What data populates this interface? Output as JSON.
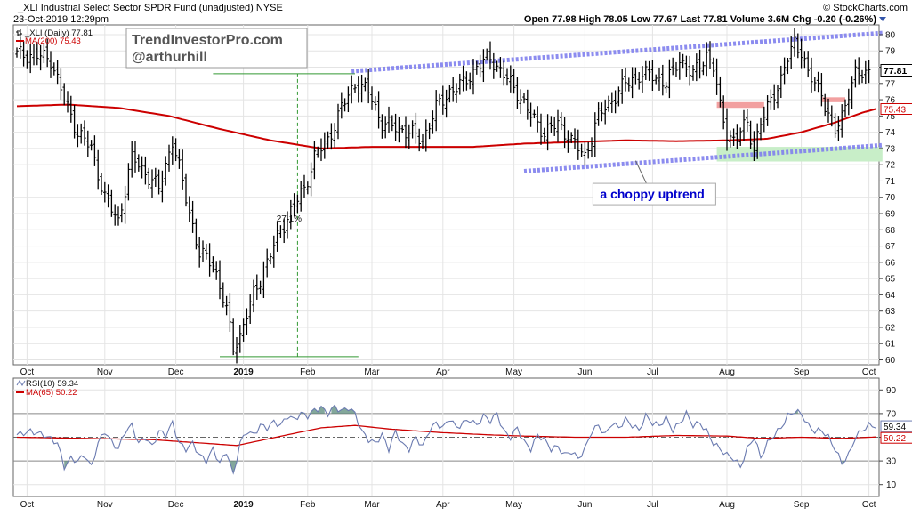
{
  "header": {
    "symbol": "_XLI",
    "name": "Industrial Select Sector SPDR Fund (unadjusted)",
    "exchange": "NYSE",
    "datetime": "23-Oct-2019 12:29pm",
    "watermark": "© StockCharts.com",
    "open_label": "Open",
    "open": "77.98",
    "high_label": "High",
    "high": "78.05",
    "low_label": "Low",
    "low": "77.67",
    "last_label": "Last",
    "last": "77.81",
    "volume_label": "Volume",
    "volume": "3.6M",
    "chg_label": "Chg",
    "chg": "-0.20 (-0.26%)"
  },
  "branding": {
    "line1": "TrendInvestorPro.com",
    "line2": "@arthurhill"
  },
  "colors": {
    "price": "#000000",
    "ma": "#cc0000",
    "channel": "#8080ee",
    "support": "#c8eec8",
    "resistance": "#f2a0a0",
    "rsi": "#6a7ab0",
    "rsi_fill": "#5a8a7a",
    "annotation_text": "#0000cc"
  },
  "chart_data": [
    {
      "type": "ohlc",
      "panel": "price",
      "legend": {
        "price_label": "_XLI (Daily) 77.81",
        "ma_label": "MA(200) 75.43"
      },
      "ylim": [
        59.7,
        80.6
      ],
      "y_ticks": [
        60,
        61,
        62,
        63,
        64,
        65,
        66,
        67,
        68,
        69,
        70,
        71,
        72,
        73,
        74,
        75,
        76,
        77,
        78,
        79,
        80
      ],
      "last_value_label": "77.81",
      "ma_value_label": "75.43",
      "x_months": [
        {
          "label": "Oct",
          "index": 3
        },
        {
          "label": "Nov",
          "index": 26
        },
        {
          "label": "Dec",
          "index": 47
        },
        {
          "label": "2019",
          "index": 67,
          "bold": true
        },
        {
          "label": "Feb",
          "index": 86
        },
        {
          "label": "Mar",
          "index": 105
        },
        {
          "label": "Apr",
          "index": 126
        },
        {
          "label": "May",
          "index": 147
        },
        {
          "label": "Jun",
          "index": 168
        },
        {
          "label": "Jul",
          "index": 188
        },
        {
          "label": "Aug",
          "index": 210
        },
        {
          "label": "Sep",
          "index": 232
        },
        {
          "label": "Oct",
          "index": 252
        }
      ],
      "series_anchors": [
        [
          0,
          78.8
        ],
        [
          6,
          78.7
        ],
        [
          10,
          78.5
        ],
        [
          14,
          76.0
        ],
        [
          18,
          74.0
        ],
        [
          22,
          73.0
        ],
        [
          26,
          70.0
        ],
        [
          30,
          68.5
        ],
        [
          34,
          72.5
        ],
        [
          38,
          71.5
        ],
        [
          42,
          70.5
        ],
        [
          46,
          73.5
        ],
        [
          50,
          70.0
        ],
        [
          54,
          66.5
        ],
        [
          58,
          66.0
        ],
        [
          62,
          63.0
        ],
        [
          64,
          60.8
        ],
        [
          66,
          61.5
        ],
        [
          70,
          64.0
        ],
        [
          74,
          66.0
        ],
        [
          78,
          68.0
        ],
        [
          82,
          69.5
        ],
        [
          85,
          70.5
        ],
        [
          88,
          72.5
        ],
        [
          92,
          73.5
        ],
        [
          96,
          75.5
        ],
        [
          100,
          77.0
        ],
        [
          104,
          76.5
        ],
        [
          108,
          74.5
        ],
        [
          112,
          74.3
        ],
        [
          116,
          74.0
        ],
        [
          120,
          73.5
        ],
        [
          124,
          75.5
        ],
        [
          128,
          76.5
        ],
        [
          132,
          77.0
        ],
        [
          136,
          78.0
        ],
        [
          140,
          78.6
        ],
        [
          144,
          77.5
        ],
        [
          148,
          76.5
        ],
        [
          152,
          75.0
        ],
        [
          156,
          74.0
        ],
        [
          160,
          74.5
        ],
        [
          164,
          73.5
        ],
        [
          168,
          72.5
        ],
        [
          172,
          75.0
        ],
        [
          176,
          76.0
        ],
        [
          180,
          77.0
        ],
        [
          184,
          77.5
        ],
        [
          188,
          77.5
        ],
        [
          192,
          77.0
        ],
        [
          196,
          78.5
        ],
        [
          200,
          77.5
        ],
        [
          204,
          78.8
        ],
        [
          206,
          78.0
        ],
        [
          208,
          75.5
        ],
        [
          210,
          74.0
        ],
        [
          212,
          73.5
        ],
        [
          214,
          74.0
        ],
        [
          216,
          74.6
        ],
        [
          218,
          73.0
        ],
        [
          220,
          74.5
        ],
        [
          222,
          75.5
        ],
        [
          224,
          76.5
        ],
        [
          226,
          77.2
        ],
        [
          228,
          78.5
        ],
        [
          230,
          79.6
        ],
        [
          232,
          79.0
        ],
        [
          234,
          77.5
        ],
        [
          236,
          77.0
        ],
        [
          238,
          76.5
        ],
        [
          240,
          75.0
        ],
        [
          242,
          74.0
        ],
        [
          244,
          75.0
        ],
        [
          246,
          76.5
        ],
        [
          248,
          77.5
        ],
        [
          250,
          77.6
        ],
        [
          252,
          77.81
        ]
      ],
      "ma200_anchors": [
        [
          0,
          75.6
        ],
        [
          15,
          75.7
        ],
        [
          30,
          75.5
        ],
        [
          45,
          75.0
        ],
        [
          60,
          74.2
        ],
        [
          75,
          73.5
        ],
        [
          90,
          73.0
        ],
        [
          105,
          73.1
        ],
        [
          120,
          73.1
        ],
        [
          135,
          73.1
        ],
        [
          150,
          73.3
        ],
        [
          165,
          73.4
        ],
        [
          180,
          73.5
        ],
        [
          195,
          73.45
        ],
        [
          210,
          73.5
        ],
        [
          222,
          73.6
        ],
        [
          232,
          74.0
        ],
        [
          242,
          74.6
        ],
        [
          250,
          75.2
        ],
        [
          254,
          75.43
        ]
      ],
      "annotations": [
        {
          "type": "text",
          "label": "27.1%",
          "index": 80.5,
          "value": 68.5
        },
        {
          "type": "text_box",
          "label": "a choppy uptrend",
          "index": 183,
          "value": 70.2
        },
        {
          "type": "trendline",
          "style": "channel-upper",
          "from": [
            99,
            77.75
          ],
          "to": [
            256,
            80.1
          ]
        },
        {
          "type": "trendline",
          "style": "channel-lower",
          "from": [
            150,
            71.6
          ],
          "to": [
            256,
            73.2
          ]
        },
        {
          "type": "measure",
          "low": [
            65,
            60.2
          ],
          "high": [
            98,
            77.6
          ],
          "mid_index": 83
        }
      ]
    },
    {
      "type": "line",
      "panel": "indicator",
      "legend": {
        "rsi_label": "RSI(10) 59.34",
        "ma_label": "MA(65) 50.22"
      },
      "ylim": [
        0,
        100
      ],
      "y_ticks": [
        10,
        30,
        50,
        70,
        90
      ],
      "last_value_label": "59.34",
      "ma_value_label": "50.22",
      "series_anchors": [
        [
          0,
          52
        ],
        [
          4,
          55
        ],
        [
          8,
          52
        ],
        [
          12,
          45
        ],
        [
          14,
          25
        ],
        [
          16,
          32
        ],
        [
          18,
          30
        ],
        [
          20,
          35
        ],
        [
          22,
          25
        ],
        [
          24,
          45
        ],
        [
          26,
          55
        ],
        [
          28,
          46
        ],
        [
          30,
          40
        ],
        [
          32,
          55
        ],
        [
          34,
          60
        ],
        [
          36,
          45
        ],
        [
          38,
          50
        ],
        [
          40,
          42
        ],
        [
          42,
          55
        ],
        [
          44,
          52
        ],
        [
          46,
          62
        ],
        [
          48,
          45
        ],
        [
          50,
          40
        ],
        [
          52,
          45
        ],
        [
          54,
          35
        ],
        [
          56,
          30
        ],
        [
          58,
          40
        ],
        [
          60,
          28
        ],
        [
          62,
          38
        ],
        [
          64,
          18
        ],
        [
          66,
          45
        ],
        [
          68,
          55
        ],
        [
          70,
          52
        ],
        [
          72,
          60
        ],
        [
          74,
          58
        ],
        [
          76,
          63
        ],
        [
          78,
          60
        ],
        [
          80,
          68
        ],
        [
          82,
          65
        ],
        [
          84,
          70
        ],
        [
          86,
          68
        ],
        [
          88,
          73
        ],
        [
          90,
          75
        ],
        [
          92,
          70
        ],
        [
          94,
          76
        ],
        [
          96,
          72
        ],
        [
          98,
          75
        ],
        [
          100,
          70
        ],
        [
          102,
          55
        ],
        [
          104,
          48
        ],
        [
          106,
          45
        ],
        [
          108,
          52
        ],
        [
          110,
          40
        ],
        [
          112,
          55
        ],
        [
          114,
          44
        ],
        [
          116,
          40
        ],
        [
          118,
          50
        ],
        [
          120,
          42
        ],
        [
          122,
          56
        ],
        [
          124,
          62
        ],
        [
          126,
          58
        ],
        [
          128,
          66
        ],
        [
          130,
          58
        ],
        [
          132,
          62
        ],
        [
          134,
          65
        ],
        [
          136,
          60
        ],
        [
          138,
          68
        ],
        [
          140,
          64
        ],
        [
          142,
          70
        ],
        [
          144,
          55
        ],
        [
          146,
          50
        ],
        [
          148,
          58
        ],
        [
          150,
          46
        ],
        [
          152,
          40
        ],
        [
          154,
          52
        ],
        [
          156,
          48
        ],
        [
          158,
          40
        ],
        [
          160,
          42
        ],
        [
          162,
          35
        ],
        [
          164,
          38
        ],
        [
          166,
          32
        ],
        [
          168,
          40
        ],
        [
          170,
          55
        ],
        [
          172,
          60
        ],
        [
          174,
          52
        ],
        [
          176,
          62
        ],
        [
          178,
          58
        ],
        [
          180,
          65
        ],
        [
          182,
          60
        ],
        [
          184,
          56
        ],
        [
          186,
          68
        ],
        [
          188,
          62
        ],
        [
          190,
          60
        ],
        [
          192,
          66
        ],
        [
          194,
          56
        ],
        [
          196,
          62
        ],
        [
          198,
          70
        ],
        [
          200,
          60
        ],
        [
          202,
          62
        ],
        [
          204,
          55
        ],
        [
          206,
          45
        ],
        [
          208,
          40
        ],
        [
          210,
          35
        ],
        [
          212,
          32
        ],
        [
          214,
          25
        ],
        [
          216,
          40
        ],
        [
          218,
          50
        ],
        [
          220,
          33
        ],
        [
          222,
          45
        ],
        [
          224,
          52
        ],
        [
          226,
          58
        ],
        [
          228,
          68
        ],
        [
          230,
          72
        ],
        [
          232,
          70
        ],
        [
          234,
          60
        ],
        [
          236,
          55
        ],
        [
          238,
          56
        ],
        [
          240,
          50
        ],
        [
          242,
          40
        ],
        [
          244,
          28
        ],
        [
          246,
          35
        ],
        [
          248,
          50
        ],
        [
          250,
          56
        ],
        [
          252,
          60
        ],
        [
          254,
          59.34
        ]
      ],
      "ma65_anchors": [
        [
          0,
          50
        ],
        [
          20,
          49
        ],
        [
          40,
          48
        ],
        [
          55,
          45
        ],
        [
          65,
          43
        ],
        [
          75,
          49
        ],
        [
          90,
          58
        ],
        [
          100,
          60
        ],
        [
          110,
          57
        ],
        [
          125,
          54
        ],
        [
          140,
          52
        ],
        [
          150,
          51
        ],
        [
          165,
          50
        ],
        [
          180,
          50
        ],
        [
          195,
          51.5
        ],
        [
          210,
          51
        ],
        [
          220,
          49
        ],
        [
          232,
          50
        ],
        [
          244,
          49
        ],
        [
          254,
          50.22
        ]
      ]
    }
  ]
}
